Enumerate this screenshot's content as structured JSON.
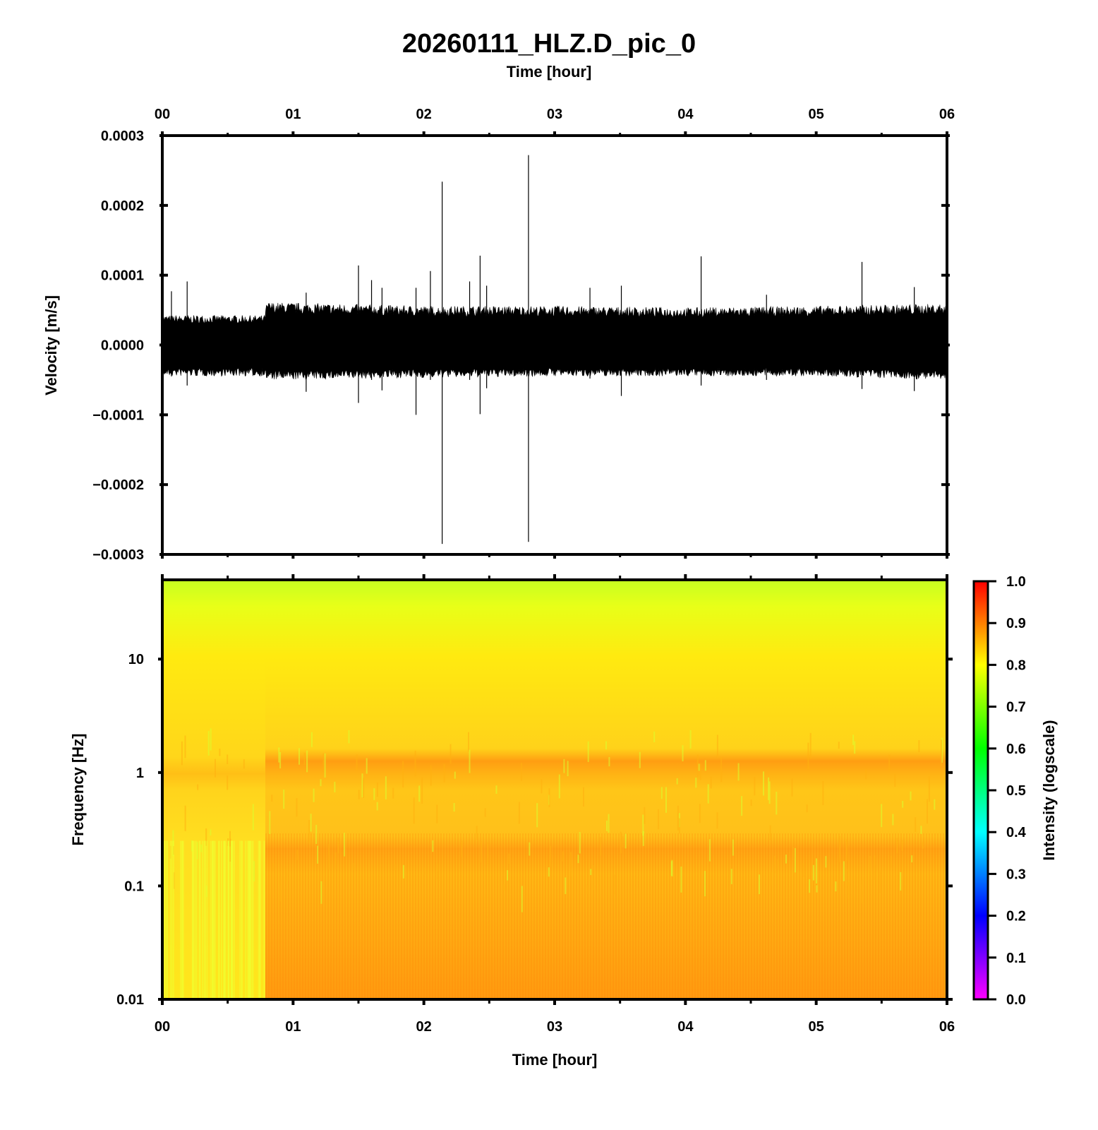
{
  "title": "20260111_HLZ.D_pic_0",
  "chart_data": [
    {
      "type": "line",
      "name": "waveform",
      "xlabel": "Time [hour]",
      "ylabel": "Velocity [m/s]",
      "xlim": [
        0,
        6
      ],
      "ylim": [
        -0.0003,
        0.0003
      ],
      "x_tick_labels": [
        "00",
        "01",
        "02",
        "03",
        "04",
        "05",
        "06"
      ],
      "x_ticks": [
        0,
        1,
        2,
        3,
        4,
        5,
        6
      ],
      "y_ticks": [
        -0.0003,
        -0.0002,
        -0.0001,
        0.0,
        0.0001,
        0.0002,
        0.0003
      ],
      "y_tick_labels": [
        "−0.0003",
        "−0.0002",
        "−0.0001",
        "0.0000",
        "0.0001",
        "0.0002",
        "0.0003"
      ],
      "noise_envelope": {
        "time_hr": [
          0.0,
          0.78,
          0.8,
          2.0,
          3.0,
          4.0,
          5.0,
          6.0
        ],
        "upper": [
          3.8e-05,
          3.8e-05,
          5.5e-05,
          5e-05,
          5e-05,
          4.8e-05,
          5e-05,
          5.3e-05
        ],
        "lower": [
          -4e-05,
          -4e-05,
          -4.5e-05,
          -4.2e-05,
          -4e-05,
          -4e-05,
          -4e-05,
          -4.5e-05
        ]
      },
      "spikes": {
        "time_hr": [
          0.07,
          0.19,
          1.1,
          1.5,
          1.6,
          1.68,
          1.94,
          2.05,
          2.14,
          2.35,
          2.43,
          2.48,
          2.8,
          3.27,
          3.51,
          4.12,
          4.62,
          5.35,
          5.75
        ],
        "high": [
          7.7e-05,
          9.1e-05,
          7.5e-05,
          0.000114,
          9.3e-05,
          8.2e-05,
          8.2e-05,
          0.000106,
          0.000234,
          9.1e-05,
          0.000128,
          8.5e-05,
          0.000272,
          8.2e-05,
          8.5e-05,
          0.000127,
          7.2e-05,
          0.000119,
          8.3e-05
        ],
        "low": [
          -4.5e-05,
          -5.8e-05,
          -6.7e-05,
          -8.3e-05,
          -5e-05,
          -6.5e-05,
          -0.0001,
          -5e-05,
          -0.000285,
          -5e-05,
          -9.9e-05,
          -6.2e-05,
          -0.000282,
          -4.8e-05,
          -7.3e-05,
          -5.8e-05,
          -5e-05,
          -6.3e-05,
          -6.6e-05
        ]
      }
    },
    {
      "type": "heatmap",
      "name": "spectrogram",
      "xlabel": "Time [hour]",
      "ylabel": "Frequency [Hz]",
      "xlim": [
        0,
        6
      ],
      "ylim": [
        0.01,
        50
      ],
      "y_scale": "log",
      "x_tick_labels": [
        "00",
        "01",
        "02",
        "03",
        "04",
        "05",
        "06"
      ],
      "y_ticks": [
        0.01,
        0.1,
        1,
        10
      ],
      "y_tick_labels": [
        "0.01",
        "0.1",
        "1",
        "10"
      ],
      "intensity_profile": {
        "freq_hz": [
          50,
          30,
          15,
          5,
          1.5,
          1.2,
          1.0,
          0.5,
          0.3,
          0.25,
          0.1,
          0.01
        ],
        "intensity_before_0_8h": [
          0.73,
          0.77,
          0.8,
          0.82,
          0.84,
          0.86,
          0.82,
          0.8,
          0.78,
          0.77,
          0.77,
          0.76
        ],
        "intensity_after_0_8h": [
          0.73,
          0.76,
          0.8,
          0.83,
          0.84,
          0.88,
          0.84,
          0.82,
          0.83,
          0.88,
          0.86,
          0.89
        ]
      },
      "colorbar": {
        "label": "Intensity (logscale)",
        "range": [
          0.0,
          1.0
        ],
        "tick_labels": [
          "0.0",
          "0.1",
          "0.2",
          "0.3",
          "0.4",
          "0.5",
          "0.6",
          "0.7",
          "0.8",
          "0.9",
          "1.0"
        ],
        "colors": [
          "#ff00ff",
          "#0000ff",
          "#00ffff",
          "#00ff00",
          "#ffff00",
          "#ff0000"
        ]
      }
    }
  ]
}
